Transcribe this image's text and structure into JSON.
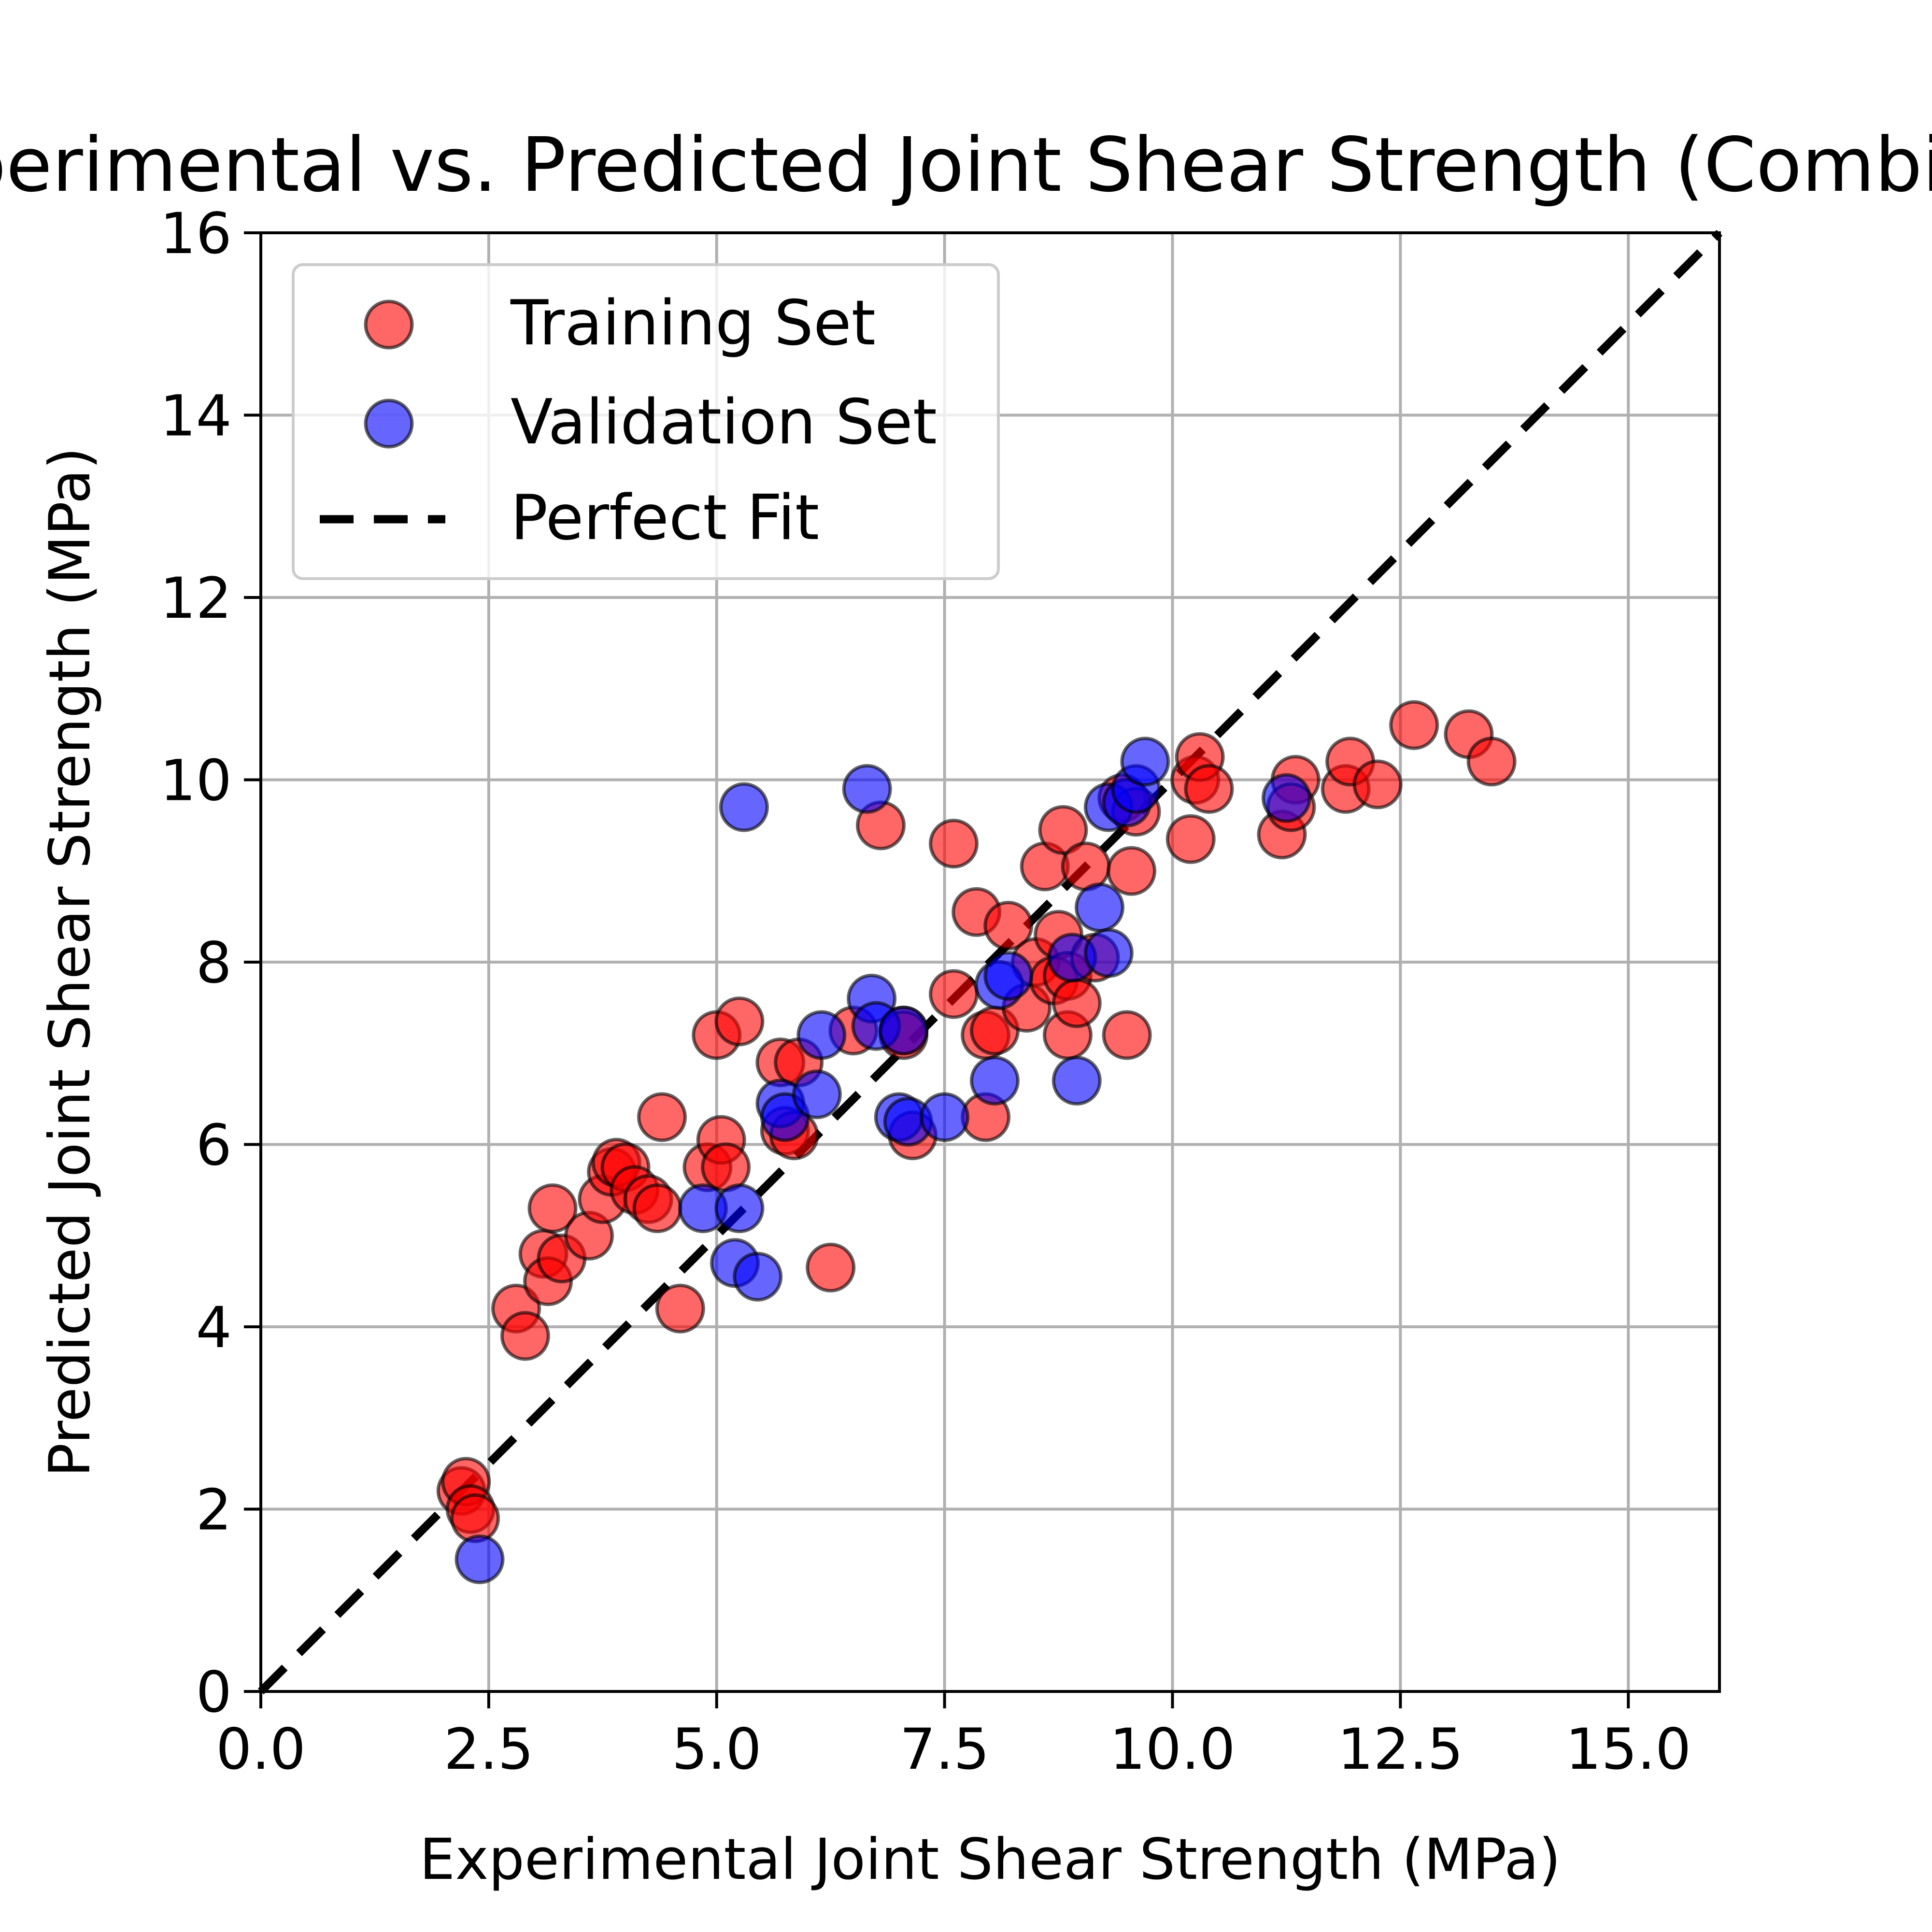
{
  "chart_data": {
    "type": "scatter",
    "title": "Experimental vs. Predicted Joint Shear Strength (Combined)",
    "xlabel": "Experimental Joint Shear Strength (MPa)",
    "ylabel": "Predicted Joint Shear Strength (MPa)",
    "xlim": [
      0,
      16
    ],
    "ylim": [
      0,
      16
    ],
    "xticks": [
      0,
      2.5,
      5,
      7.5,
      10,
      12.5,
      15
    ],
    "xtick_labels": [
      "0.0",
      "2.5",
      "5.0",
      "7.5",
      "10.0",
      "12.5",
      "15.0"
    ],
    "yticks": [
      0,
      2,
      4,
      6,
      8,
      10,
      12,
      14,
      16
    ],
    "ytick_labels": [
      "0",
      "2",
      "4",
      "6",
      "8",
      "10",
      "12",
      "14",
      "16"
    ],
    "grid": true,
    "legend_position": "top-left",
    "series": [
      {
        "name": "Training Set",
        "color": "#ff0000",
        "marker": "circle",
        "points": [
          [
            2.2,
            2.2
          ],
          [
            2.25,
            2.3
          ],
          [
            2.3,
            2.0
          ],
          [
            2.35,
            1.9
          ],
          [
            2.8,
            4.2
          ],
          [
            2.9,
            3.9
          ],
          [
            3.1,
            4.8
          ],
          [
            3.15,
            4.5
          ],
          [
            3.2,
            5.3
          ],
          [
            3.3,
            4.75
          ],
          [
            3.6,
            5.0
          ],
          [
            3.75,
            5.4
          ],
          [
            3.85,
            5.7
          ],
          [
            3.9,
            5.8
          ],
          [
            4.0,
            5.75
          ],
          [
            4.1,
            5.5
          ],
          [
            4.25,
            5.4
          ],
          [
            4.35,
            5.3
          ],
          [
            4.4,
            6.3
          ],
          [
            4.6,
            4.2
          ],
          [
            4.9,
            5.75
          ],
          [
            5.0,
            7.2
          ],
          [
            5.05,
            6.05
          ],
          [
            5.1,
            5.75
          ],
          [
            5.25,
            7.35
          ],
          [
            5.7,
            6.9
          ],
          [
            5.75,
            6.15
          ],
          [
            5.85,
            6.1
          ],
          [
            5.9,
            6.9
          ],
          [
            6.25,
            4.65
          ],
          [
            6.5,
            7.25
          ],
          [
            6.8,
            9.5
          ],
          [
            7.05,
            7.25
          ],
          [
            7.15,
            6.1
          ],
          [
            7.6,
            7.65
          ],
          [
            7.6,
            9.3
          ],
          [
            7.85,
            8.55
          ],
          [
            7.95,
            7.2
          ],
          [
            7.95,
            6.3
          ],
          [
            8.05,
            7.25
          ],
          [
            8.2,
            8.4
          ],
          [
            8.4,
            7.5
          ],
          [
            8.5,
            8.0
          ],
          [
            8.6,
            9.05
          ],
          [
            8.7,
            7.8
          ],
          [
            8.75,
            8.3
          ],
          [
            8.8,
            9.45
          ],
          [
            8.85,
            7.85
          ],
          [
            8.85,
            7.2
          ],
          [
            8.95,
            7.55
          ],
          [
            9.05,
            9.05
          ],
          [
            9.15,
            8.05
          ],
          [
            9.45,
            9.8
          ],
          [
            9.5,
            7.2
          ],
          [
            9.55,
            9.0
          ],
          [
            9.6,
            9.65
          ],
          [
            10.2,
            9.35
          ],
          [
            10.25,
            10.0
          ],
          [
            10.3,
            10.25
          ],
          [
            10.4,
            9.9
          ],
          [
            11.2,
            9.4
          ],
          [
            11.35,
            10.0
          ],
          [
            11.9,
            9.9
          ],
          [
            11.95,
            10.2
          ],
          [
            12.25,
            9.95
          ],
          [
            12.65,
            10.6
          ],
          [
            13.25,
            10.5
          ],
          [
            13.5,
            10.2
          ],
          [
            11.3,
            9.7
          ],
          [
            7.05,
            7.2
          ]
        ]
      },
      {
        "name": "Validation Set",
        "color": "#0000ff",
        "marker": "circle",
        "points": [
          [
            2.4,
            1.45
          ],
          [
            4.85,
            5.3
          ],
          [
            5.2,
            4.7
          ],
          [
            5.25,
            5.3
          ],
          [
            5.3,
            9.7
          ],
          [
            5.45,
            4.55
          ],
          [
            5.7,
            6.45
          ],
          [
            5.75,
            6.3
          ],
          [
            6.1,
            6.55
          ],
          [
            6.15,
            7.2
          ],
          [
            6.65,
            9.9
          ],
          [
            6.7,
            7.6
          ],
          [
            6.75,
            7.3
          ],
          [
            7.0,
            6.3
          ],
          [
            7.05,
            7.25
          ],
          [
            7.1,
            6.25
          ],
          [
            7.5,
            6.3
          ],
          [
            8.05,
            6.7
          ],
          [
            8.1,
            7.75
          ],
          [
            8.2,
            7.85
          ],
          [
            8.9,
            8.05
          ],
          [
            8.95,
            6.7
          ],
          [
            9.2,
            8.6
          ],
          [
            9.3,
            8.1
          ],
          [
            9.3,
            9.7
          ],
          [
            9.5,
            9.75
          ],
          [
            9.6,
            9.9
          ],
          [
            9.7,
            10.2
          ],
          [
            11.25,
            9.8
          ]
        ]
      }
    ],
    "reference_line": {
      "name": "Perfect Fit",
      "from": [
        0,
        0
      ],
      "to": [
        16,
        16
      ],
      "style": "dashed",
      "color": "#000000"
    }
  }
}
